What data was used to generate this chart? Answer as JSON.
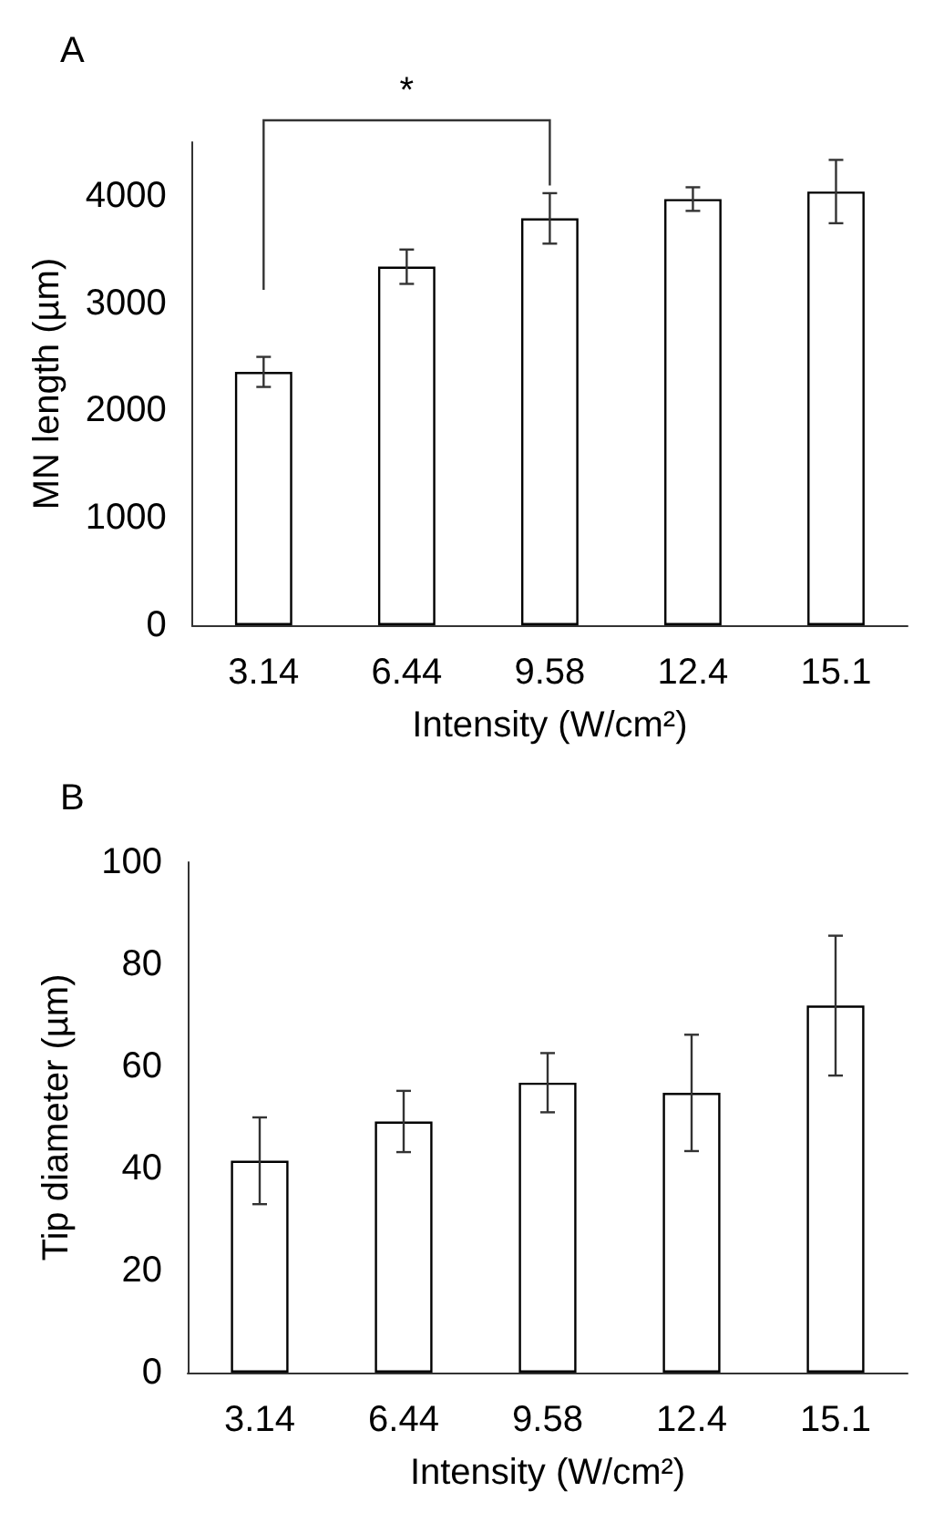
{
  "chart_data": [
    {
      "type": "bar",
      "title": "A",
      "xlabel": "Intensity (W/cm²)",
      "ylabel": "MN length (µm)",
      "categories": [
        "3.14",
        "6.44",
        "9.58",
        "12.4",
        "15.1"
      ],
      "values": [
        2360,
        3340,
        3790,
        3970,
        4040
      ],
      "errors": [
        140,
        160,
        235,
        110,
        295
      ],
      "color": "#ffffff",
      "ylim": [
        0,
        4500
      ],
      "yticks": [
        0,
        1000,
        2000,
        3000,
        4000
      ],
      "grid": false,
      "annotations": [
        "*"
      ]
    },
    {
      "type": "bar",
      "title": "B",
      "xlabel": "Intensity (W/cm²)",
      "ylabel": "Tip diameter (µm)",
      "categories": [
        "3.14",
        "6.44",
        "9.58",
        "12.4",
        "15.1"
      ],
      "values": [
        41.5,
        49.2,
        56.8,
        54.8,
        71.9
      ],
      "errors": [
        8.5,
        6,
        5.8,
        11.4,
        13.7
      ],
      "color": "#ffffff",
      "ylim": [
        0,
        100
      ],
      "yticks": [
        0,
        20,
        40,
        60,
        80,
        100
      ],
      "grid": false
    }
  ]
}
